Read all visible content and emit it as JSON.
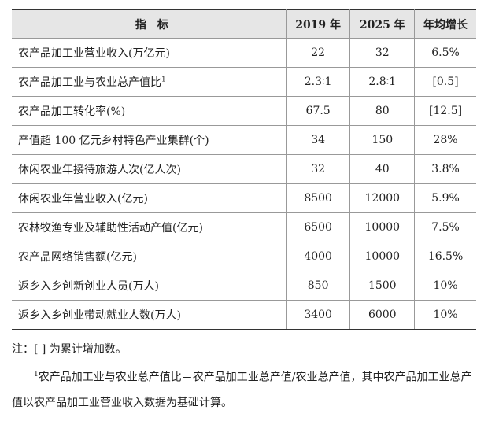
{
  "table": {
    "header": [
      "指　标",
      "2019 年",
      "2025 年",
      "年均增长"
    ],
    "rows": [
      [
        "农产品加工业营业收入(万亿元)",
        "22",
        "32",
        "6.5%"
      ],
      [
        "农产品加工业与农业总产值比",
        "2.3∶1",
        "2.8∶1",
        "[0.5]"
      ],
      [
        "农产品加工转化率(%)",
        "67.5",
        "80",
        "[12.5]"
      ],
      [
        "产值超 100 亿元乡村特色产业集群(个)",
        "34",
        "150",
        "28%"
      ],
      [
        "休闲农业年接待旅游人次(亿人次)",
        "32",
        "40",
        "3.8%"
      ],
      [
        "休闲农业年营业收入(亿元)",
        "8500",
        "12000",
        "5.9%"
      ],
      [
        "农林牧渔专业及辅助性活动产值(亿元)",
        "6500",
        "10000",
        "7.5%"
      ],
      [
        "农产品网络销售额(亿元)",
        "4000",
        "10000",
        "16.5%"
      ],
      [
        "返乡入乡创新创业人员(万人)",
        "850",
        "1500",
        "10%"
      ],
      [
        "返乡入乡创业带动就业人数(万人)",
        "3400",
        "6000",
        "10%"
      ]
    ],
    "row_footnote_marks": {
      "1": "1"
    }
  },
  "notes": {
    "note": "注：[ ] 为累计增加数。",
    "footnote_mark": "1",
    "footnote": "农产品加工业与农业总产值比＝农产品加工业总产值/农业总产值，其中农产品加工业总产值以农产品加工业营业收入数据为基础计算。"
  }
}
